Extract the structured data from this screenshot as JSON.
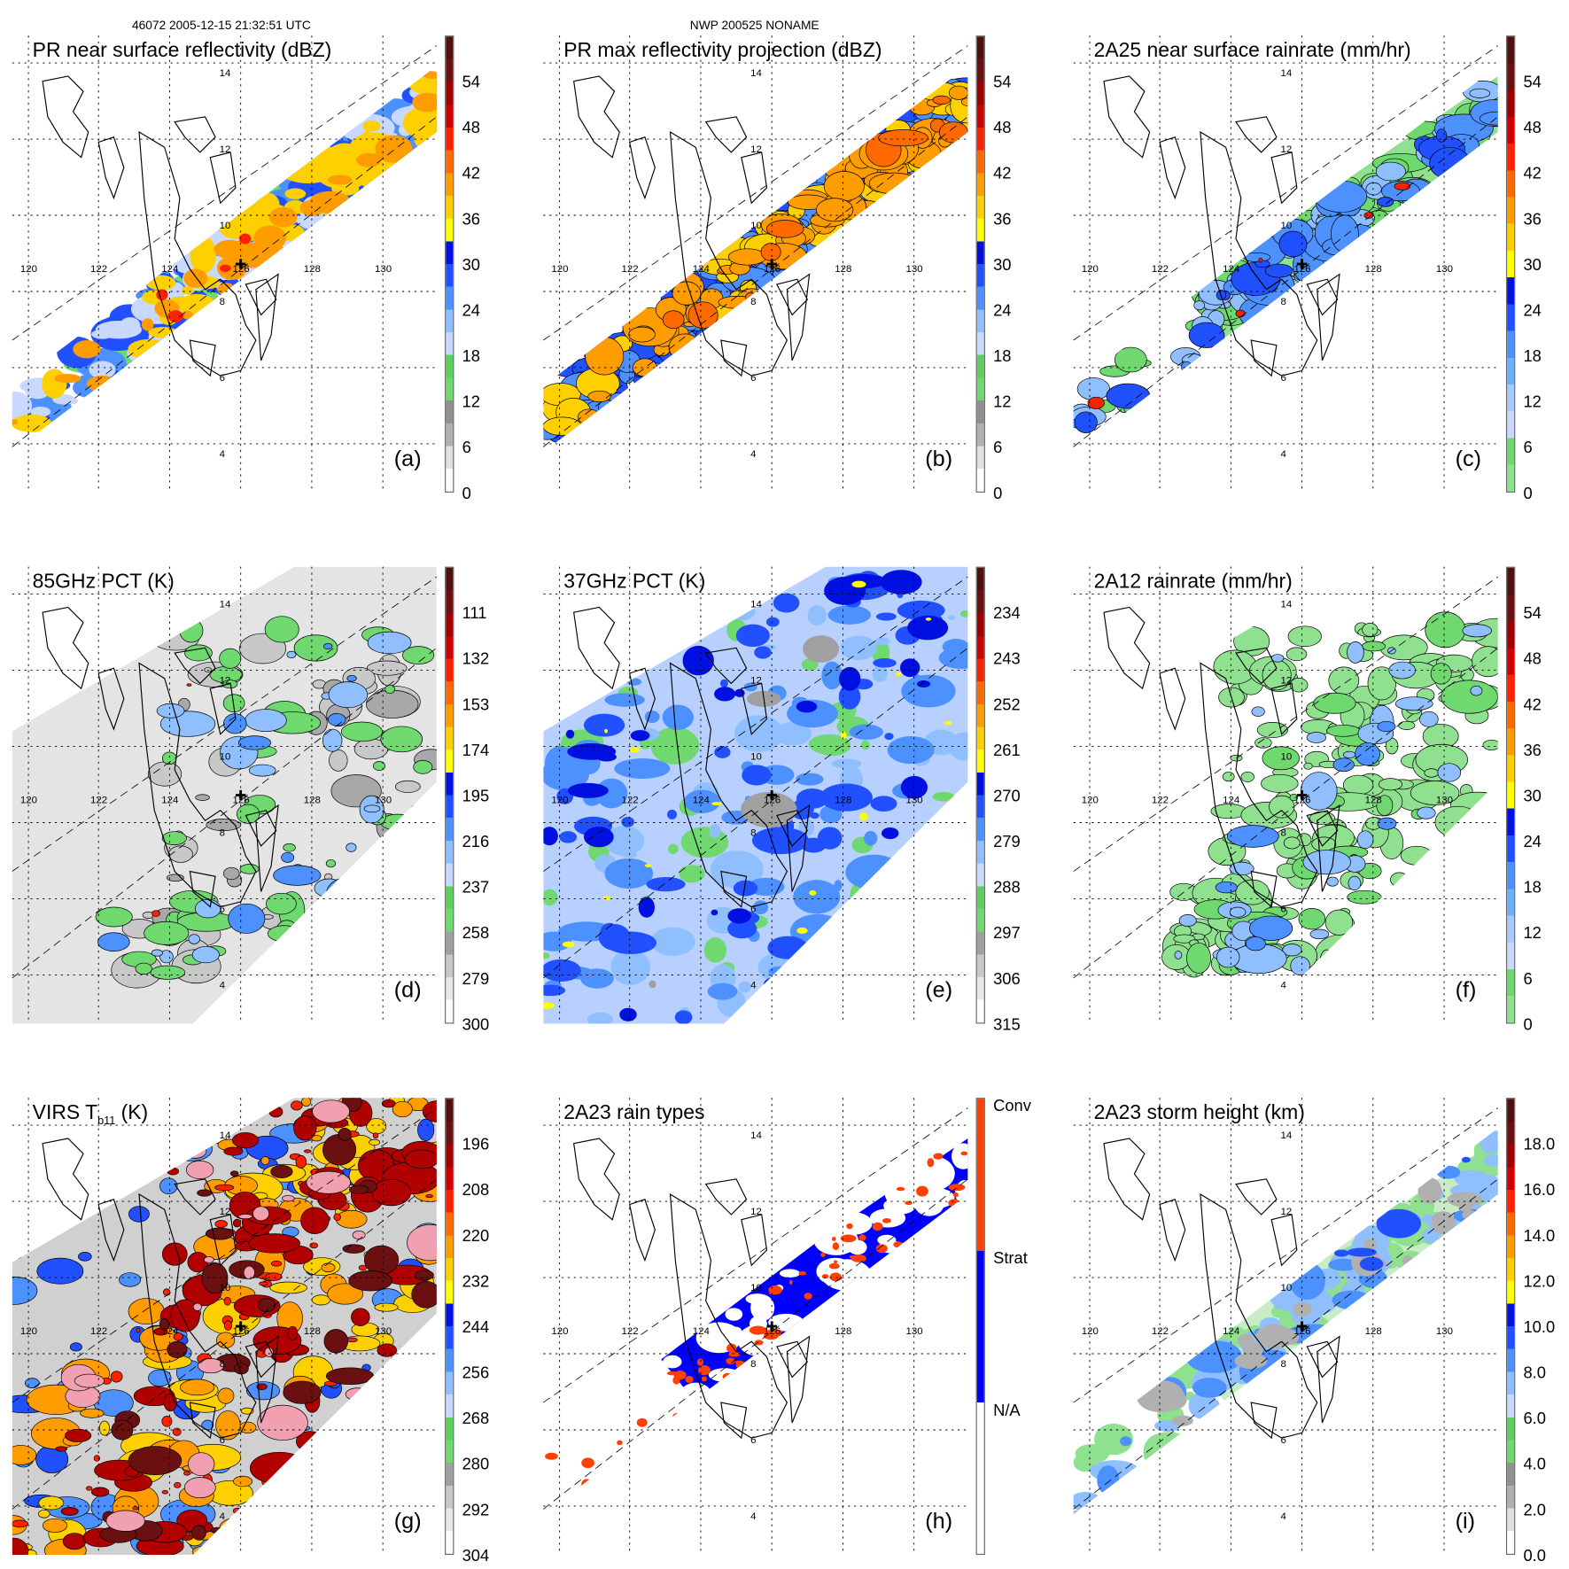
{
  "header": {
    "left": "46072 2005-12-15 21:32:51 UTC",
    "center": "NWP 200525 NONAME"
  },
  "grid": {
    "lon_labels": [
      "120",
      "122",
      "124",
      "126",
      "128",
      "130"
    ],
    "lat_labels": [
      "14",
      "12",
      "10",
      "8",
      "6",
      "4"
    ]
  },
  "chart_data": [
    {
      "type": "heatmap",
      "id": "a",
      "title": "PR near surface reflectivity (dBZ)",
      "label": "(a)",
      "swath": "narrow",
      "style": "refl",
      "colorbar_labels": [
        "54",
        "48",
        "42",
        "36",
        "30",
        "24",
        "18",
        "12",
        "6",
        "0"
      ],
      "colorbar_range": [
        0,
        60
      ],
      "colorbar_colors": [
        "#ffffff",
        "#e0e0e0",
        "#b0b0b0",
        "#909090",
        "#6fd86f",
        "#5ccf5c",
        "#c8d8ff",
        "#8fbfff",
        "#4d90ff",
        "#2050ff",
        "#0010e0",
        "#ffff00",
        "#ffd000",
        "#ff9c00",
        "#ff6a00",
        "#ff2000",
        "#d00000",
        "#a00000",
        "#6a1010",
        "#501010"
      ]
    },
    {
      "type": "heatmap",
      "id": "b",
      "title": "PR max reflectivity projection (dBZ)",
      "label": "(b)",
      "swath": "narrow",
      "style": "reflmax",
      "colorbar_labels": [
        "54",
        "48",
        "42",
        "36",
        "30",
        "24",
        "18",
        "12",
        "6",
        "0"
      ],
      "colorbar_range": [
        0,
        60
      ],
      "colorbar_colors": [
        "#ffffff",
        "#e0e0e0",
        "#b0b0b0",
        "#909090",
        "#6fd86f",
        "#5ccf5c",
        "#c8d8ff",
        "#8fbfff",
        "#4d90ff",
        "#2050ff",
        "#0010e0",
        "#ffff00",
        "#ffd000",
        "#ff9c00",
        "#ff6a00",
        "#ff2000",
        "#d00000",
        "#a00000",
        "#6a1010",
        "#501010"
      ]
    },
    {
      "type": "heatmap",
      "id": "c",
      "title": "2A25 near surface rainrate (mm/hr)",
      "label": "(c)",
      "swath": "narrow",
      "style": "rain",
      "colorbar_labels": [
        "54",
        "48",
        "42",
        "36",
        "30",
        "24",
        "18",
        "12",
        "6",
        "0"
      ],
      "colorbar_range": [
        0,
        60
      ],
      "colorbar_colors": [
        "#8fe08f",
        "#6fd86f",
        "#c8d8ff",
        "#a8c8ff",
        "#6fb0ff",
        "#4d90ff",
        "#2050ff",
        "#0010e0",
        "#ffff00",
        "#ffd000",
        "#ff9c00",
        "#ff6a00",
        "#ff2000",
        "#d00000",
        "#a00000",
        "#6a1010",
        "#501010"
      ]
    },
    {
      "type": "heatmap",
      "id": "d",
      "title": "85GHz PCT (K)",
      "label": "(d)",
      "swath": "wide",
      "style": "pct85",
      "colorbar_labels": [
        "111",
        "132",
        "153",
        "174",
        "195",
        "216",
        "237",
        "258",
        "279",
        "300"
      ],
      "colorbar_range": [
        90,
        300
      ],
      "colorbar_colors": [
        "#ffffff",
        "#e8e8e8",
        "#c8c8c8",
        "#a0a0a0",
        "#6fd86f",
        "#5ccf5c",
        "#c8d8ff",
        "#8fbfff",
        "#4d90ff",
        "#2050ff",
        "#0010e0",
        "#ffff00",
        "#ffd000",
        "#ff9c00",
        "#ff6a00",
        "#ff2000",
        "#d00000",
        "#a00000",
        "#6a1010",
        "#501010"
      ]
    },
    {
      "type": "heatmap",
      "id": "e",
      "title": "37GHz PCT (K)",
      "label": "(e)",
      "swath": "wide",
      "style": "pct37",
      "colorbar_labels": [
        "234",
        "243",
        "252",
        "261",
        "270",
        "279",
        "288",
        "297",
        "306",
        "315"
      ],
      "colorbar_range": [
        225,
        315
      ],
      "colorbar_colors": [
        "#ffffff",
        "#e8e8e8",
        "#c8c8c8",
        "#a0a0a0",
        "#6fd86f",
        "#5ccf5c",
        "#c8d8ff",
        "#8fbfff",
        "#4d90ff",
        "#2050ff",
        "#0010e0",
        "#ffff00",
        "#ffd000",
        "#ff9c00",
        "#ff6a00",
        "#ff2000",
        "#d00000",
        "#a00000",
        "#6a1010",
        "#501010"
      ]
    },
    {
      "type": "heatmap",
      "id": "f",
      "title": "2A12 rainrate (mm/hr)",
      "label": "(f)",
      "swath": "wide",
      "style": "rain12",
      "colorbar_labels": [
        "54",
        "48",
        "42",
        "36",
        "30",
        "24",
        "18",
        "12",
        "6",
        "0"
      ],
      "colorbar_range": [
        0,
        60
      ],
      "colorbar_colors": [
        "#8fe08f",
        "#6fd86f",
        "#c8d8ff",
        "#a8c8ff",
        "#6fb0ff",
        "#4d90ff",
        "#2050ff",
        "#0010e0",
        "#ffff00",
        "#ffd000",
        "#ff9c00",
        "#ff6a00",
        "#ff2000",
        "#d00000",
        "#a00000",
        "#6a1010",
        "#501010"
      ]
    },
    {
      "type": "heatmap",
      "id": "g",
      "title": "VIRS T",
      "title_sub": "b11",
      "title_end": " (K)",
      "label": "(g)",
      "swath": "wide",
      "style": "virs",
      "colorbar_labels": [
        "196",
        "208",
        "220",
        "232",
        "244",
        "256",
        "268",
        "280",
        "292",
        "304"
      ],
      "colorbar_range": [
        184,
        304
      ],
      "colorbar_colors": [
        "#ffffff",
        "#e8e8e8",
        "#c8c8c8",
        "#a0a0a0",
        "#6fd86f",
        "#5ccf5c",
        "#c8d8ff",
        "#8fbfff",
        "#4d90ff",
        "#2050ff",
        "#0010e0",
        "#ffff00",
        "#ffd000",
        "#ff9c00",
        "#ff6a00",
        "#ff2000",
        "#d00000",
        "#a00000",
        "#6a1010",
        "#501010"
      ]
    },
    {
      "type": "heatmap",
      "id": "h",
      "title": "2A23 rain types",
      "label": "(h)",
      "swath": "narrow",
      "style": "types",
      "colorbar_labels": [
        "Conv",
        "Strat",
        "N/A"
      ],
      "categories": [
        "Conv",
        "Strat",
        "N/A"
      ],
      "colorbar_colors": [
        "#ffffff",
        "#0000ff",
        "#ff4000"
      ]
    },
    {
      "type": "heatmap",
      "id": "i",
      "title": "2A23 storm height (km)",
      "label": "(i)",
      "swath": "narrow",
      "style": "height",
      "colorbar_labels": [
        "18.0",
        "16.0",
        "14.0",
        "12.0",
        "10.0",
        "8.0",
        "6.0",
        "4.0",
        "2.0",
        "0.0"
      ],
      "colorbar_range": [
        0,
        20
      ],
      "colorbar_colors": [
        "#ffffff",
        "#e0e0e0",
        "#b0b0b0",
        "#909090",
        "#6fd86f",
        "#5ccf5c",
        "#c8d8ff",
        "#8fbfff",
        "#4d90ff",
        "#2050ff",
        "#0010e0",
        "#ffff00",
        "#ffd000",
        "#ff9c00",
        "#ff6a00",
        "#ff2000",
        "#d00000",
        "#a00000",
        "#6a1010",
        "#501010"
      ]
    }
  ]
}
